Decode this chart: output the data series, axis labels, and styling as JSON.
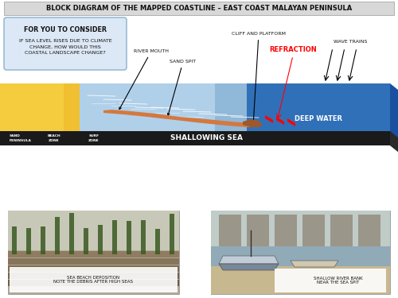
{
  "title": "BLOCK DIAGRAM OF THE MAPPED COASTLINE – EAST COAST MALAYAN PENINSULA",
  "consider_title": "FOR YOU TO CONSIDER",
  "consider_text": "IF SEA LEVEL RISES DUE TO CLIMATE\nCHANGE, HOW WOULD THIS\nCOASTAL LANDSCAPE CHANGE?",
  "labels": {
    "river_mouth": "RIVER MOUTH",
    "sand_spit": "SAND SPIT",
    "cliff_platform": "CLIFF AND PLATFORM",
    "refraction": "REFRACTION",
    "wave_trains": "WAVE TRAINS",
    "deep_water": "DEEP WATER",
    "shallowing_sea": "SHALLOWING SEA",
    "sand_peninsula": "SAND\nPENINSULA",
    "beach_zone": "BEACH\nZONE",
    "surf_zone": "SURF\nZONE"
  },
  "photo1_caption": "SEA BEACH DEPOSITION\nNOTE THE DEBRIS AFTER HIGH SEAS",
  "photo2_caption": "SHALLOW RIVER BANK\nNEAR THE SEA SPIT",
  "bg_color": "#ffffff",
  "title_bg": "#d8d8d8",
  "consider_bg": "#dce8f5",
  "sea_deep_color": "#3070b8",
  "sea_deep_side": "#1a50a0",
  "sea_shallow_color": "#b0d0ea",
  "sea_shallow_top": "#d0e8f5",
  "sand_color": "#f0c030",
  "sand_side": "#c8a020",
  "sand_spit_color": "#d4783e",
  "black_bar_color": "#1a1a1a",
  "refraction_color": "#ff0000",
  "cliff_color": "#b06830"
}
